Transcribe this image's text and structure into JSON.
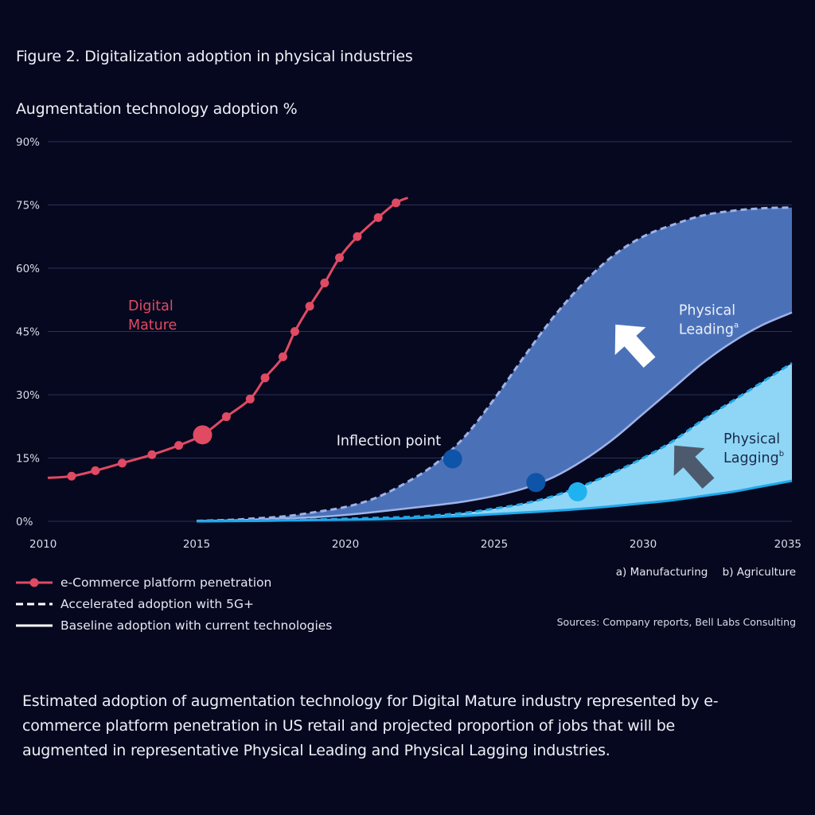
{
  "figure_title": "Figure 2. Digitalization adoption in physical industries",
  "notes": {
    "a": "a)  Manufacturing",
    "b": "b) Agriculture"
  },
  "sources": "Sources: Company reports, Bell Labs Consulting",
  "caption": "Estimated adoption of augmentation technology for Digital Mature industry represented by e-commerce platform penetration in US retail and projected proportion of jobs that will be augmented in representative Physical Leading and Physical Lagging industries.",
  "legend": [
    {
      "label": "e-Commerce platform penetration"
    },
    {
      "label": "Accelerated adoption with 5G+"
    },
    {
      "label": "Baseline adoption with current technologies"
    }
  ],
  "colors": {
    "ecommerce": "#e04a63",
    "leading_fill": "#4a71b8",
    "lagging_fill": "#8fd6f6",
    "leading_line": "#9fb2e6",
    "lagging_line": "#1fa8ea",
    "inflection_dot": "#0e54a8",
    "lagging_dot": "#20b2ef",
    "arrow_leading": "#ffffff",
    "arrow_lagging": "#4d5a6e",
    "grid": "#2b3158"
  },
  "chart_data": {
    "type": "area",
    "ylabel": "Augmentation technology adoption %",
    "xlim": [
      2010,
      2035
    ],
    "ylim": [
      0,
      90
    ],
    "yticks": [
      0,
      15,
      30,
      45,
      60,
      75,
      90
    ],
    "ytick_labels": [
      "0%",
      "15%",
      "30%",
      "45%",
      "60%",
      "75%",
      "90%"
    ],
    "xticks": [
      2010,
      2015,
      2020,
      2025,
      2030,
      2035
    ],
    "xtick_labels": [
      "2010",
      "2015",
      "2020",
      "2025",
      "2030",
      "2035"
    ],
    "series": [
      {
        "name": "e-Commerce platform penetration (Digital Mature)",
        "style": "line-markers",
        "x": [
          2010.0,
          2010.8,
          2011.6,
          2012.5,
          2013.5,
          2014.4,
          2015.2,
          2016.0,
          2016.8,
          2017.3,
          2017.9,
          2018.3,
          2018.8,
          2019.3,
          2019.8,
          2020.4,
          2021.1,
          2021.7,
          2022.1
        ],
        "y": [
          10.3,
          10.7,
          12.0,
          13.8,
          15.8,
          18.0,
          20.5,
          24.8,
          29.0,
          34.0,
          39.0,
          45.0,
          51.0,
          56.5,
          62.5,
          67.5,
          72.0,
          75.5,
          76.7
        ],
        "marker_x": [
          2010.8,
          2011.6,
          2012.5,
          2013.5,
          2014.4,
          2016.0,
          2016.8,
          2017.3,
          2017.9,
          2018.3,
          2018.8,
          2019.3,
          2019.8,
          2020.4,
          2021.1,
          2021.7
        ],
        "highlight_point": {
          "x": 2015.2,
          "y": 20.5
        }
      },
      {
        "name": "Physical Leading – Accelerated adoption with 5G+",
        "style": "dashed",
        "x": [
          2015,
          2016,
          2017,
          2018,
          2019,
          2020,
          2021,
          2022,
          2023,
          2024,
          2025,
          2026,
          2027,
          2028,
          2029,
          2030,
          2031,
          2032,
          2033,
          2034,
          2035
        ],
        "y": [
          0.1,
          0.3,
          0.7,
          1.2,
          2.2,
          3.4,
          5.5,
          9.0,
          13.5,
          20.0,
          29.0,
          39.0,
          48.5,
          56.5,
          63.0,
          67.5,
          70.3,
          72.5,
          73.6,
          74.2,
          74.4
        ]
      },
      {
        "name": "Physical Leading – Baseline adoption with current technologies",
        "style": "solid",
        "x": [
          2015,
          2016,
          2017,
          2018,
          2019,
          2020,
          2021,
          2022,
          2023,
          2024,
          2025,
          2026,
          2027,
          2028,
          2029,
          2030,
          2031,
          2032,
          2033,
          2034,
          2035
        ],
        "y": [
          0.1,
          0.2,
          0.4,
          0.7,
          1.0,
          1.5,
          2.2,
          3.0,
          3.8,
          4.7,
          6.0,
          7.8,
          10.5,
          14.5,
          19.5,
          25.5,
          31.5,
          37.5,
          42.5,
          46.5,
          49.5
        ]
      },
      {
        "name": "Physical Lagging – Accelerated adoption with 5G+",
        "style": "dashed",
        "x": [
          2015,
          2016,
          2017,
          2018,
          2019,
          2020,
          2021,
          2022,
          2023,
          2024,
          2025,
          2026,
          2027,
          2028,
          2029,
          2030,
          2031,
          2032,
          2033,
          2034,
          2035
        ],
        "y": [
          0.0,
          0.1,
          0.2,
          0.3,
          0.4,
          0.6,
          0.8,
          1.0,
          1.4,
          2.0,
          3.0,
          4.2,
          6.0,
          8.5,
          11.5,
          15.0,
          19.0,
          24.0,
          28.5,
          33.0,
          37.5
        ]
      },
      {
        "name": "Physical Lagging – Baseline adoption with current technologies",
        "style": "solid",
        "x": [
          2015,
          2016,
          2017,
          2018,
          2019,
          2020,
          2021,
          2022,
          2023,
          2024,
          2025,
          2026,
          2027,
          2028,
          2029,
          2030,
          2031,
          2032,
          2033,
          2034,
          2035
        ],
        "y": [
          0.0,
          0.05,
          0.1,
          0.2,
          0.3,
          0.4,
          0.5,
          0.7,
          1.0,
          1.3,
          1.7,
          2.1,
          2.5,
          3.0,
          3.6,
          4.3,
          5.0,
          6.0,
          7.0,
          8.3,
          9.6
        ]
      }
    ],
    "points": [
      {
        "name": "inflection-point-leading",
        "x": 2023.6,
        "y": 14.8
      },
      {
        "name": "inflection-point-leading-baseline",
        "x": 2026.4,
        "y": 9.2
      },
      {
        "name": "inflection-point-lagging",
        "x": 2027.8,
        "y": 7.0
      }
    ],
    "annotations": [
      {
        "name": "digital-mature",
        "lines": [
          "Digital",
          "Mature"
        ],
        "x": 2012.7,
        "y": 50
      },
      {
        "name": "inflection-point",
        "lines": [
          "Inflection point"
        ],
        "x": 2019.7,
        "y": 18
      },
      {
        "name": "physical-leading",
        "lines": [
          "Physical",
          "Leading"
        ],
        "superscript": "a",
        "x": 2031.2,
        "y": 49
      },
      {
        "name": "physical-lagging",
        "lines": [
          "Physical",
          "Lagging"
        ],
        "superscript": "b",
        "x": 2032.7,
        "y": 18.5
      }
    ]
  }
}
